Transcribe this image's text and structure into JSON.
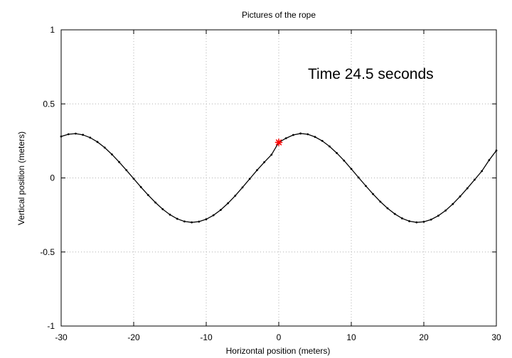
{
  "chart_data": {
    "type": "line",
    "title": "Pictures of the rope",
    "xlabel": "Horizontal position (meters)",
    "ylabel": "Vertical position (meters)",
    "xlim": [
      -30,
      30
    ],
    "ylim": [
      -1,
      1
    ],
    "xticks": [
      -30,
      -20,
      -10,
      0,
      10,
      20,
      30
    ],
    "yticks": [
      -1,
      -0.5,
      0,
      0.5,
      1
    ],
    "xtick_labels": [
      "-30",
      "-20",
      "-10",
      "0",
      "10",
      "20",
      "30"
    ],
    "ytick_labels": [
      "-1",
      "-0.5",
      "0",
      "0.5",
      "1"
    ],
    "grid": true,
    "annotation": "Time 24.5 seconds",
    "series": [
      {
        "color": "#000000",
        "marker": "dot",
        "x": [
          -30,
          -29,
          -28,
          -27,
          -26,
          -25,
          -24,
          -23,
          -22,
          -21,
          -20,
          -19,
          -18,
          -17,
          -16,
          -15,
          -14,
          -13,
          -12,
          -11,
          -10,
          -9,
          -8,
          -7,
          -6,
          -5,
          -4,
          -3,
          -2,
          -1,
          0,
          1,
          2,
          3,
          4,
          5,
          6,
          7,
          8,
          9,
          10,
          11,
          12,
          13,
          14,
          15,
          16,
          17,
          18,
          19,
          20,
          21,
          22,
          23,
          24,
          25,
          26,
          27,
          28,
          29,
          30
        ],
        "y": [
          0.28,
          0.295,
          0.299,
          0.291,
          0.272,
          0.243,
          0.205,
          0.159,
          0.107,
          0.052,
          -0.005,
          -0.062,
          -0.116,
          -0.166,
          -0.211,
          -0.248,
          -0.276,
          -0.294,
          -0.3,
          -0.295,
          -0.279,
          -0.252,
          -0.216,
          -0.171,
          -0.12,
          -0.064,
          -0.006,
          0.052,
          0.106,
          0.157,
          0.24,
          0.268,
          0.29,
          0.3,
          0.295,
          0.277,
          0.25,
          0.213,
          0.168,
          0.117,
          0.061,
          0.003,
          -0.054,
          -0.109,
          -0.16,
          -0.205,
          -0.243,
          -0.273,
          -0.292,
          -0.3,
          -0.296,
          -0.281,
          -0.255,
          -0.22,
          -0.176,
          -0.125,
          -0.07,
          -0.012,
          0.046,
          0.12,
          0.185
        ]
      }
    ],
    "highlight_point": {
      "x": 0,
      "y": 0.24,
      "color": "#ff0000"
    }
  }
}
